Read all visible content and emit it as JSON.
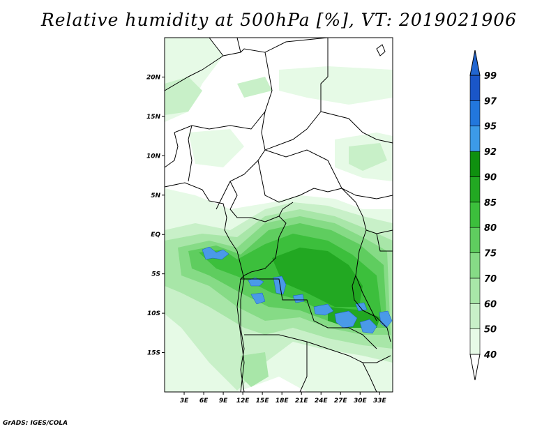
{
  "title": "Relative humidity at 500hPa [%], VT: 2019021906",
  "credit": "GrADS: IGES/COLA",
  "map": {
    "lon_range": [
      0,
      35
    ],
    "lat_range": [
      -20,
      25
    ],
    "lat_ticks": [
      {
        "value": 20,
        "label": "20N"
      },
      {
        "value": 15,
        "label": "15N"
      },
      {
        "value": 10,
        "label": "10N"
      },
      {
        "value": 5,
        "label": "5N"
      },
      {
        "value": 0,
        "label": "EQ"
      },
      {
        "value": -5,
        "label": "5S"
      },
      {
        "value": -10,
        "label": "10S"
      },
      {
        "value": -15,
        "label": "15S"
      }
    ],
    "lon_ticks": [
      {
        "value": 3,
        "label": "3E"
      },
      {
        "value": 6,
        "label": "6E"
      },
      {
        "value": 9,
        "label": "9E"
      },
      {
        "value": 12,
        "label": "12E"
      },
      {
        "value": 15,
        "label": "15E"
      },
      {
        "value": 18,
        "label": "18E"
      },
      {
        "value": 21,
        "label": "21E"
      },
      {
        "value": 24,
        "label": "24E"
      },
      {
        "value": 27,
        "label": "27E"
      },
      {
        "value": 30,
        "label": "30E"
      },
      {
        "value": 33,
        "label": "33E"
      }
    ]
  },
  "colorbar": {
    "levels": [
      "40",
      "50",
      "60",
      "70",
      "75",
      "80",
      "85",
      "90",
      "92",
      "95",
      "97",
      "99"
    ],
    "colors": [
      "#ffffff",
      "#e6fae6",
      "#c8f0c8",
      "#a8e6a8",
      "#86db86",
      "#5fcd5f",
      "#3cbf3c",
      "#22a822",
      "#0f900f",
      "#3c9ae8",
      "#2277dd",
      "#1a56c8",
      "#2266d0"
    ]
  },
  "palette": {
    "l1": "#e6fae6",
    "l2": "#c8f0c8",
    "l3": "#a8e6a8",
    "l4": "#86db86",
    "l5": "#5fcd5f",
    "l6": "#3cbf3c",
    "l7": "#22a822",
    "blue": "#4a9ae8",
    "border": "#000000"
  }
}
